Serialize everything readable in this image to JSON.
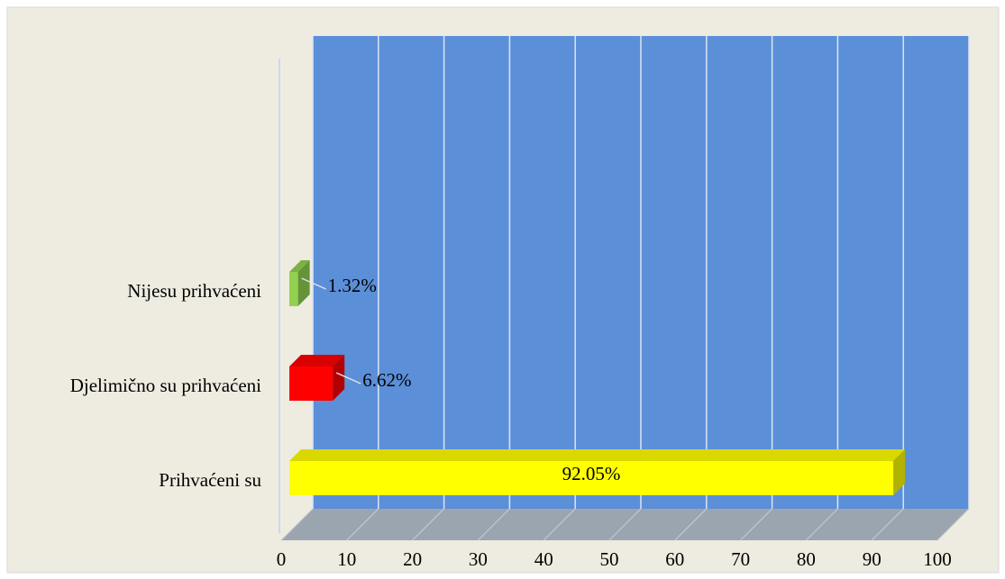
{
  "chart_data": {
    "type": "bar3d_horizontal",
    "categories": [
      "Nijesu prihvaćeni",
      "Djelimično su prihvaćeni",
      "Prihvaćeni su"
    ],
    "values": [
      1.32,
      6.62,
      92.05
    ],
    "value_labels": [
      "1.32%",
      "6.62%",
      "92.05%"
    ],
    "colors": [
      "#92d050",
      "#ff0000",
      "#ffff00"
    ],
    "xlim": [
      0,
      100
    ],
    "xticks": [
      0,
      10,
      20,
      30,
      40,
      50,
      60,
      70,
      80,
      90,
      100
    ],
    "grid": true
  }
}
